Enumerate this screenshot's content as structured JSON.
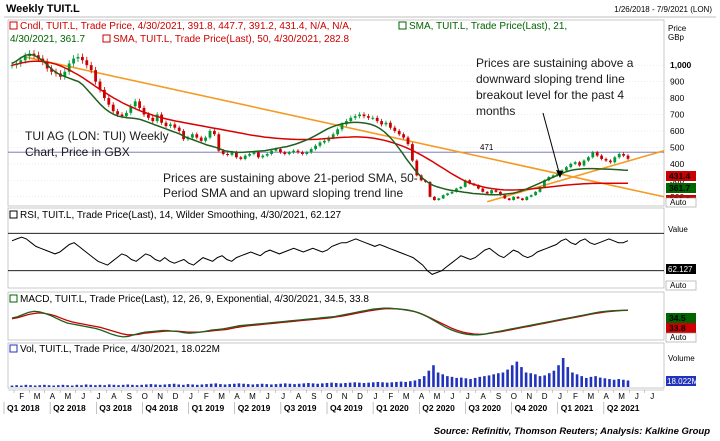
{
  "chart_data": {
    "type": "candlestick",
    "window_title": "Weekly TUIT.L",
    "date_range": "1/26/2018 - 7/9/2021 (LON)",
    "source": "Source: Refinitiv, Thomson Reuters; Analysis: Kalkine Group",
    "panels": {
      "price": {
        "legend": [
          {
            "text": "Cndl, TUIT.L, Trade Price, 4/30/2021, 391.8, 447.7, 391.2, 431.4, N/A, N/A,",
            "color": "#cc0000"
          },
          {
            "text": "SMA, TUIT.L, Trade Price(Last),  21,",
            "color": "#006400"
          },
          {
            "text": "4/30/2021, 361.7",
            "color": "#006400"
          },
          {
            "text": "SMA, TUIT.L, Trade Price(Last),  50, 4/30/2021, 282.8",
            "color": "#cc0000"
          }
        ],
        "axis_title": "Price",
        "axis_unit": "GBp",
        "ticks": [
          "1,000",
          "900",
          "800",
          "700",
          "600",
          "500",
          "400",
          "300",
          "200"
        ],
        "reference_line": {
          "value": 471,
          "label": "471"
        },
        "last_values": [
          {
            "value": "431.4",
            "color": "#cc0000"
          },
          {
            "value": "361.7",
            "color": "#006400"
          },
          {
            "value": "282.8",
            "color": "#cc0000"
          }
        ],
        "candles_close": [
          1000,
          1010,
          1030,
          1055,
          1070,
          1060,
          1040,
          1020,
          980,
          960,
          950,
          930,
          960,
          1010,
          1040,
          1050,
          1030,
          1000,
          970,
          900,
          850,
          800,
          760,
          720,
          700,
          690,
          710,
          750,
          780,
          740,
          700,
          680,
          660,
          700,
          650,
          630,
          640,
          620,
          600,
          550,
          560,
          580,
          560,
          540,
          560,
          600,
          580,
          480,
          460,
          455,
          470,
          440,
          430,
          450,
          460,
          470,
          440,
          450,
          460,
          480,
          490,
          470,
          460,
          470,
          480,
          470,
          460,
          470,
          490,
          510,
          530,
          540,
          560,
          580,
          610,
          640,
          660,
          680,
          690,
          700,
          690,
          680,
          680,
          660,
          640,
          650,
          620,
          600,
          580,
          560,
          520,
          420,
          330,
          300,
          290,
          200,
          180,
          190,
          210,
          220,
          230,
          250,
          260,
          300,
          280,
          270,
          250,
          230,
          220,
          240,
          230,
          210,
          190,
          180,
          200,
          190,
          180,
          200,
          210,
          230,
          260,
          300,
          320,
          330,
          340,
          360,
          380,
          400,
          410,
          390,
          420,
          440,
          470,
          450,
          430,
          420,
          410,
          440,
          460,
          450,
          431
        ],
        "sma21": [
          1010,
          1025,
          1045,
          1060,
          1065,
          1060,
          1045,
          1025,
          1000,
          975,
          955,
          940,
          930,
          920,
          910,
          900,
          880,
          850,
          820,
          790,
          760,
          735,
          715,
          700,
          690,
          685,
          680,
          678,
          675,
          670,
          660,
          650,
          640,
          630,
          620,
          610,
          600,
          590,
          580,
          565,
          555,
          545,
          535,
          525,
          515,
          508,
          500,
          490,
          480,
          475,
          472,
          470,
          470,
          472,
          474,
          476,
          478,
          480,
          485,
          490,
          495,
          500,
          505,
          512,
          520,
          530,
          540,
          552,
          565,
          580,
          595,
          610,
          622,
          632,
          640,
          646,
          650,
          652,
          652,
          650,
          646,
          640,
          630,
          615,
          595,
          570,
          540,
          505,
          470,
          430,
          395,
          360,
          330,
          305,
          285,
          270,
          260,
          252,
          245,
          240,
          236,
          232,
          228,
          224,
          220,
          218,
          216,
          214,
          212,
          212,
          213,
          215,
          218,
          222,
          228,
          236,
          246,
          258,
          270,
          282,
          294,
          306,
          318,
          330,
          342,
          352,
          360,
          365,
          368,
          370,
          371,
          371,
          370,
          369,
          368,
          367,
          366,
          364,
          362,
          361.7
        ],
        "sma50": [
          1000,
          1005,
          1012,
          1018,
          1022,
          1024,
          1024,
          1022,
          1018,
          1012,
          1005,
          995,
          983,
          970,
          955,
          940,
          923,
          905,
          887,
          868,
          850,
          833,
          816,
          800,
          785,
          770,
          757,
          745,
          733,
          722,
          712,
          703,
          694,
          686,
          679,
          672,
          666,
          660,
          655,
          650,
          645,
          640,
          635,
          630,
          625,
          620,
          615,
          610,
          605,
          600,
          595,
          590,
          585,
          580,
          575,
          571,
          567,
          563,
          560,
          557,
          555,
          553,
          551,
          550,
          549,
          548,
          548,
          548,
          549,
          550,
          552,
          554,
          556,
          558,
          560,
          562,
          563,
          564,
          564,
          563,
          561,
          558,
          554,
          549,
          543,
          536,
          528,
          519,
          509,
          498,
          486,
          473,
          459,
          444,
          428,
          412,
          395,
          378,
          361,
          344,
          328,
          313,
          299,
          287,
          277,
          269,
          262,
          256,
          251,
          247,
          244,
          242,
          241,
          241,
          242,
          243,
          245,
          247,
          250,
          253,
          256,
          259,
          262,
          265,
          268,
          271,
          273,
          275,
          277,
          279,
          280,
          281,
          281,
          282,
          282,
          282,
          282,
          282,
          282,
          282.8
        ]
      },
      "rsi": {
        "legend": "RSI, TUIT.L, Trade Price(Last),  14, Wilder Smoothing, 4/30/2021, 62.127",
        "axis_title": "Value",
        "last_value": "62.127",
        "values": [
          62,
          64,
          66,
          64,
          60,
          56,
          54,
          52,
          50,
          48,
          50,
          54,
          58,
          60,
          56,
          52,
          48,
          44,
          40,
          38,
          36,
          40,
          44,
          48,
          46,
          42,
          40,
          44,
          48,
          46,
          42,
          40,
          44,
          40,
          38,
          40,
          42,
          38,
          36,
          40,
          44,
          42,
          40,
          44,
          46,
          42,
          40,
          44,
          46,
          48,
          50,
          48,
          46,
          50,
          52,
          50,
          48,
          50,
          52,
          54,
          52,
          50,
          52,
          54,
          52,
          50,
          52,
          56,
          58,
          60,
          60,
          62,
          64,
          62,
          60,
          58,
          56,
          58,
          56,
          54,
          52,
          50,
          48,
          46,
          44,
          40,
          36,
          30,
          26,
          28,
          30,
          34,
          38,
          42,
          46,
          44,
          42,
          44,
          48,
          52,
          54,
          50,
          46,
          44,
          48,
          52,
          50,
          46,
          44,
          46,
          50,
          52,
          54,
          56,
          58,
          62,
          64,
          60,
          58,
          62,
          64,
          60,
          58,
          60,
          62,
          64,
          62,
          60,
          60,
          62.127
        ]
      },
      "macd": {
        "legend": "MACD, TUIT.L, Trade Price(Last),  12, 26, 9, Exponential, 4/30/2021, 34.5, 33.8",
        "legend_macd_value": "34.5",
        "legend_signal_value": "33.8",
        "last_values": [
          {
            "value": "34.5",
            "color": "#006400"
          },
          {
            "value": "33.8",
            "color": "#cc0000"
          }
        ],
        "macd": [
          5,
          10,
          18,
          26,
          30,
          28,
          22,
          14,
          4,
          -6,
          -14,
          -18,
          -22,
          -26,
          -30,
          -34,
          -40,
          -48,
          -56,
          -62,
          -66,
          -64,
          -58,
          -52,
          -48,
          -46,
          -44,
          -42,
          -42,
          -44,
          -46,
          -50,
          -52,
          -50,
          -48,
          -44,
          -40,
          -38,
          -36,
          -32,
          -28,
          -24,
          -22,
          -20,
          -18,
          -16,
          -14,
          -12,
          -10,
          -8,
          -6,
          -4,
          -2,
          0,
          2,
          4,
          6,
          8,
          10,
          14,
          18,
          22,
          26,
          30,
          34,
          38,
          40,
          42,
          42,
          40,
          38,
          36,
          32,
          26,
          18,
          8,
          -4,
          -16,
          -28,
          -38,
          -46,
          -52,
          -56,
          -58,
          -58,
          -56,
          -52,
          -48,
          -44,
          -40,
          -36,
          -32,
          -28,
          -24,
          -20,
          -16,
          -12,
          -8,
          -4,
          0,
          4,
          8,
          12,
          16,
          20,
          24,
          28,
          30,
          32,
          33,
          34,
          34.5
        ],
        "signal": [
          2,
          6,
          12,
          18,
          22,
          24,
          22,
          18,
          12,
          4,
          -4,
          -10,
          -14,
          -18,
          -22,
          -26,
          -30,
          -36,
          -42,
          -48,
          -54,
          -58,
          -58,
          -56,
          -52,
          -50,
          -48,
          -46,
          -44,
          -44,
          -44,
          -46,
          -48,
          -48,
          -48,
          -46,
          -44,
          -42,
          -40,
          -38,
          -34,
          -30,
          -27,
          -24,
          -22,
          -20,
          -18,
          -16,
          -14,
          -12,
          -10,
          -8,
          -6,
          -4,
          -2,
          0,
          2,
          4,
          6,
          9,
          12,
          16,
          20,
          24,
          28,
          32,
          35,
          38,
          40,
          40,
          39,
          37,
          34,
          30,
          24,
          16,
          6,
          -4,
          -14,
          -24,
          -34,
          -42,
          -48,
          -52,
          -55,
          -56,
          -55,
          -52,
          -49,
          -46,
          -42,
          -38,
          -34,
          -30,
          -26,
          -22,
          -18,
          -14,
          -10,
          -6,
          -2,
          2,
          6,
          10,
          14,
          18,
          22,
          25,
          28,
          30,
          32,
          33,
          33.8
        ]
      },
      "vol": {
        "legend": "Vol, TUIT.L, Trade Price, 4/30/2021, 18.022M",
        "axis_title": "Volume",
        "last_value": "18.022M",
        "values": [
          4,
          5,
          4,
          6,
          5,
          4,
          5,
          6,
          5,
          4,
          5,
          6,
          5,
          4,
          6,
          5,
          7,
          6,
          5,
          6,
          5,
          7,
          6,
          5,
          6,
          7,
          6,
          5,
          6,
          7,
          8,
          7,
          6,
          7,
          8,
          9,
          7,
          6,
          8,
          7,
          6,
          7,
          8,
          9,
          10,
          8,
          7,
          8,
          9,
          10,
          9,
          8,
          7,
          8,
          9,
          8,
          7,
          8,
          9,
          10,
          9,
          8,
          9,
          10,
          11,
          10,
          9,
          10,
          11,
          12,
          11,
          10,
          11,
          12,
          13,
          12,
          11,
          12,
          13,
          14,
          13,
          12,
          13,
          14,
          15,
          14,
          16,
          18,
          22,
          30,
          45,
          60,
          40,
          35,
          30,
          28,
          25,
          26,
          24,
          22,
          25,
          28,
          30,
          32,
          35,
          38,
          40,
          48,
          60,
          70,
          55,
          40,
          38,
          35,
          30,
          32,
          38,
          45,
          60,
          80,
          55,
          40,
          35,
          30,
          25,
          28,
          30,
          26,
          24,
          22,
          20,
          22,
          20,
          18.022
        ]
      }
    },
    "x_axis": {
      "months": [
        "F",
        "M",
        "A",
        "M",
        "J",
        "J",
        "A",
        "S",
        "O",
        "N",
        "D",
        "J",
        "F",
        "M",
        "A",
        "M",
        "J",
        "J",
        "A",
        "S",
        "O",
        "N",
        "D",
        "J",
        "F",
        "M",
        "A",
        "M",
        "J",
        "J",
        "A",
        "S",
        "O",
        "N",
        "D",
        "J",
        "F",
        "M",
        "A",
        "M",
        "J",
        "J"
      ],
      "quarters": [
        "Q1 2018",
        "Q2 2018",
        "Q3 2018",
        "Q4 2018",
        "Q1 2019",
        "Q2 2019",
        "Q3 2019",
        "Q4 2019",
        "Q1 2020",
        "Q2 2020",
        "Q3 2020",
        "Q4 2020",
        "Q1 2021",
        "Q2 2021"
      ]
    },
    "annotations": {
      "left_title": [
        "TUI AG (LON: TUI) Weekly",
        "Chart, Price in GBX"
      ],
      "right_note": [
        "Prices are sustaining above a",
        "downward sloping trend line",
        "breakout level for the past 4",
        "months"
      ],
      "sma_note": [
        "Prices are sustaining above 21-period SMA, 50-",
        "Period SMA and an upward sloping trend line"
      ]
    },
    "auto_label": "Auto",
    "colors": {
      "up": "#009933",
      "down": "#cc0000",
      "sma21": "#1f5f1f",
      "sma50": "#d90000",
      "trend": "#f59a23",
      "vol": "#2233bb",
      "rsi": "#000000",
      "grid": "#d9d9d9"
    }
  }
}
